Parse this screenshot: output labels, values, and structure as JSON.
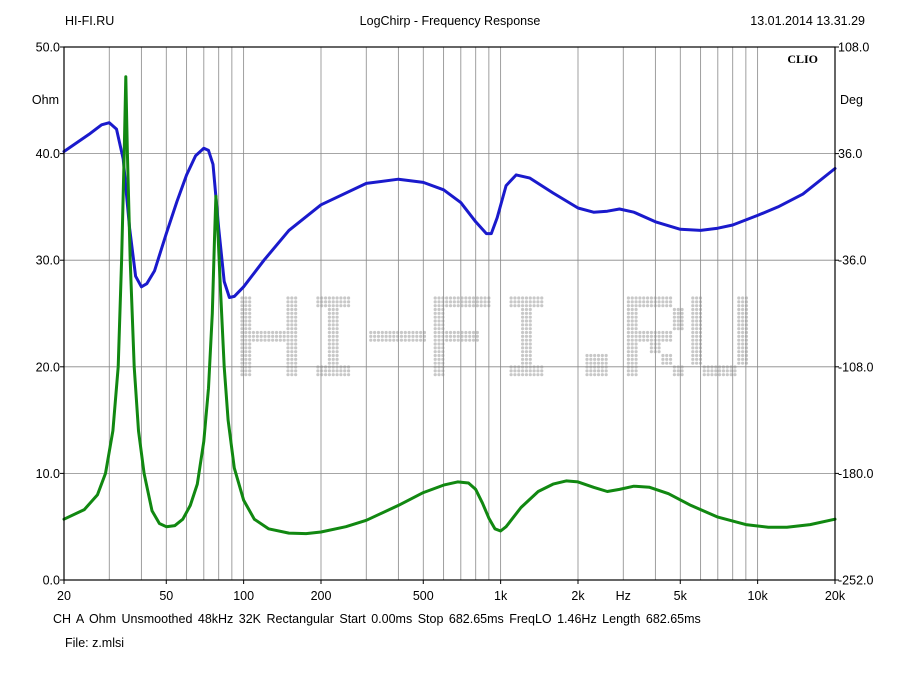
{
  "header": {
    "left": "HI-FI.RU",
    "center": "LogChirp - Frequency Response",
    "right": "13.01.2014 13.31.29"
  },
  "logo": "CLIO",
  "watermark": "HI-FI.RU",
  "footer": {
    "info": "CH A   Ohm   Unsmoothed   48kHz   32K   Rectangular   Start 0.00ms   Stop 682.65ms   FreqLO 1.46Hz   Length 682.65ms",
    "file": "File: z.mlsi"
  },
  "colors": {
    "magnitude": "#1a1acc",
    "phase": "#118811",
    "grid": "#888888",
    "frame": "#000000"
  },
  "chart_data": {
    "type": "line",
    "title": "LogChirp - Frequency Response",
    "x_scale": "log",
    "xlim": [
      20,
      20000
    ],
    "x_tick_labels": [
      {
        "value": 20,
        "label": "20"
      },
      {
        "value": 50,
        "label": "50"
      },
      {
        "value": 100,
        "label": "100"
      },
      {
        "value": 200,
        "label": "200"
      },
      {
        "value": 500,
        "label": "500"
      },
      {
        "value": 1000,
        "label": "1k"
      },
      {
        "value": 2000,
        "label": "2k"
      },
      {
        "value": 5000,
        "label": "5k"
      },
      {
        "value": 10000,
        "label": "10k"
      },
      {
        "value": 20000,
        "label": "20k"
      }
    ],
    "x_unit_label": {
      "value": 3000,
      "label": "Hz"
    },
    "y_left": {
      "unit": "Ohm",
      "range": [
        0,
        50
      ],
      "ticks": [
        "0.0",
        "10.0",
        "20.0",
        "30.0",
        "40.0",
        "50.0"
      ]
    },
    "y_right": {
      "unit": "Deg",
      "range": [
        -252,
        108
      ],
      "ticks": [
        "-252.0",
        "-180.0",
        "-108.0",
        "-36.0",
        "36.0",
        "108.0"
      ]
    },
    "grid": true,
    "series": [
      {
        "axis": "left",
        "color": "#1a1acc",
        "points": [
          [
            20,
            40.2
          ],
          [
            25,
            41.8
          ],
          [
            28,
            42.7
          ],
          [
            30,
            42.9
          ],
          [
            32,
            42.3
          ],
          [
            34,
            39.5
          ],
          [
            36,
            33
          ],
          [
            38,
            28.5
          ],
          [
            40,
            27.5
          ],
          [
            42,
            27.8
          ],
          [
            45,
            29
          ],
          [
            50,
            32.5
          ],
          [
            55,
            35.5
          ],
          [
            60,
            38
          ],
          [
            65,
            39.8
          ],
          [
            70,
            40.5
          ],
          [
            73,
            40.3
          ],
          [
            76,
            39
          ],
          [
            80,
            33
          ],
          [
            84,
            28
          ],
          [
            88,
            26.5
          ],
          [
            92,
            26.6
          ],
          [
            100,
            27.5
          ],
          [
            120,
            30
          ],
          [
            150,
            32.8
          ],
          [
            200,
            35.2
          ],
          [
            300,
            37.2
          ],
          [
            400,
            37.6
          ],
          [
            500,
            37.3
          ],
          [
            600,
            36.6
          ],
          [
            700,
            35.4
          ],
          [
            800,
            33.6
          ],
          [
            880,
            32.5
          ],
          [
            920,
            32.5
          ],
          [
            970,
            34
          ],
          [
            1050,
            37
          ],
          [
            1150,
            38
          ],
          [
            1300,
            37.7
          ],
          [
            1600,
            36.3
          ],
          [
            2000,
            34.9
          ],
          [
            2300,
            34.5
          ],
          [
            2600,
            34.6
          ],
          [
            2900,
            34.8
          ],
          [
            3300,
            34.5
          ],
          [
            4000,
            33.6
          ],
          [
            5000,
            32.9
          ],
          [
            6000,
            32.8
          ],
          [
            7000,
            33
          ],
          [
            8000,
            33.3
          ],
          [
            10000,
            34.2
          ],
          [
            12000,
            35
          ],
          [
            15000,
            36.2
          ],
          [
            20000,
            38.6
          ]
        ]
      },
      {
        "axis": "left",
        "color": "#118811",
        "points": [
          [
            20,
            5.7
          ],
          [
            24,
            6.6
          ],
          [
            27,
            8
          ],
          [
            29,
            10
          ],
          [
            31,
            14
          ],
          [
            32.5,
            20
          ],
          [
            33.5,
            30
          ],
          [
            34.3,
            40
          ],
          [
            34.8,
            47.2
          ],
          [
            35.3,
            40
          ],
          [
            36.2,
            30
          ],
          [
            37.5,
            20
          ],
          [
            39,
            14
          ],
          [
            41,
            10
          ],
          [
            44,
            6.5
          ],
          [
            47,
            5.3
          ],
          [
            50,
            5
          ],
          [
            54,
            5.1
          ],
          [
            58,
            5.7
          ],
          [
            62,
            7
          ],
          [
            66,
            9
          ],
          [
            70,
            13
          ],
          [
            73,
            18
          ],
          [
            75.5,
            25
          ],
          [
            77,
            32
          ],
          [
            78,
            36
          ],
          [
            79,
            34
          ],
          [
            81,
            28
          ],
          [
            84,
            20
          ],
          [
            87,
            15
          ],
          [
            92,
            10.5
          ],
          [
            100,
            7.5
          ],
          [
            110,
            5.7
          ],
          [
            125,
            4.8
          ],
          [
            150,
            4.4
          ],
          [
            175,
            4.35
          ],
          [
            200,
            4.5
          ],
          [
            250,
            5
          ],
          [
            300,
            5.6
          ],
          [
            400,
            7
          ],
          [
            500,
            8.2
          ],
          [
            600,
            8.9
          ],
          [
            680,
            9.2
          ],
          [
            750,
            9.1
          ],
          [
            800,
            8.5
          ],
          [
            850,
            7.2
          ],
          [
            900,
            5.8
          ],
          [
            950,
            4.8
          ],
          [
            1000,
            4.6
          ],
          [
            1050,
            5
          ],
          [
            1200,
            6.8
          ],
          [
            1400,
            8.3
          ],
          [
            1600,
            9
          ],
          [
            1800,
            9.3
          ],
          [
            2000,
            9.2
          ],
          [
            2300,
            8.7
          ],
          [
            2600,
            8.3
          ],
          [
            2900,
            8.5
          ],
          [
            3300,
            8.8
          ],
          [
            3800,
            8.7
          ],
          [
            4500,
            8.1
          ],
          [
            5500,
            7
          ],
          [
            7000,
            5.9
          ],
          [
            9000,
            5.2
          ],
          [
            11000,
            4.95
          ],
          [
            13000,
            4.95
          ],
          [
            16000,
            5.2
          ],
          [
            20000,
            5.7
          ]
        ]
      }
    ]
  }
}
